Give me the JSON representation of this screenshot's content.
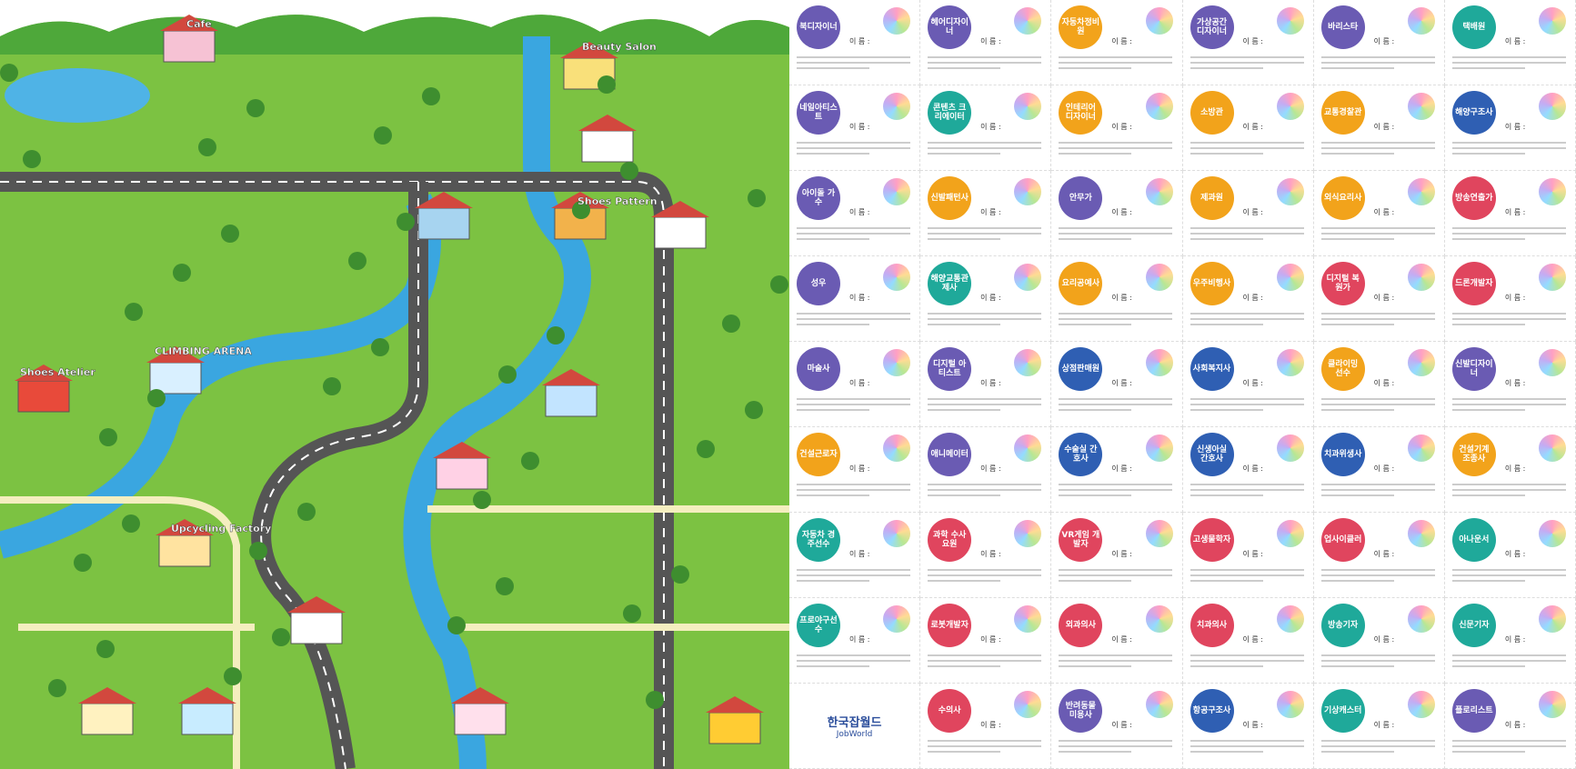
{
  "map": {
    "labels": [
      "Cafe",
      "Beauty Salon",
      "Shoes Pattern",
      "CLIMBING ARENA",
      "Shoes Atelier",
      "Upcycling Factory"
    ]
  },
  "cards": {
    "name_label": "이 름 :",
    "items": [
      {
        "title": "북디자이너",
        "color": "#6a5bb3"
      },
      {
        "title": "헤어디자이너",
        "color": "#6a5bb3"
      },
      {
        "title": "자동차정비원",
        "color": "#f2a31b"
      },
      {
        "title": "가상공간 디자이너",
        "color": "#6a5bb3"
      },
      {
        "title": "바리스타",
        "color": "#6a5bb3"
      },
      {
        "title": "택배원",
        "color": "#1fa99a"
      },
      {
        "title": "네일아티스트",
        "color": "#6a5bb3"
      },
      {
        "title": "콘텐츠 크리에이터",
        "color": "#1fa99a"
      },
      {
        "title": "인테리어 디자이너",
        "color": "#f2a31b"
      },
      {
        "title": "소방관",
        "color": "#f2a31b"
      },
      {
        "title": "교통경찰관",
        "color": "#f2a31b"
      },
      {
        "title": "해양구조사",
        "color": "#2f5fb3"
      },
      {
        "title": "아이돌 가수",
        "color": "#6a5bb3"
      },
      {
        "title": "신발패턴사",
        "color": "#f2a31b"
      },
      {
        "title": "안무가",
        "color": "#6a5bb3"
      },
      {
        "title": "제과원",
        "color": "#f2a31b"
      },
      {
        "title": "외식요리사",
        "color": "#f2a31b"
      },
      {
        "title": "방송연출가",
        "color": "#e0455e"
      },
      {
        "title": "성우",
        "color": "#6a5bb3"
      },
      {
        "title": "해양교통관제사",
        "color": "#1fa99a"
      },
      {
        "title": "요리공예사",
        "color": "#f2a31b"
      },
      {
        "title": "우주비행사",
        "color": "#f2a31b"
      },
      {
        "title": "디지털 복원가",
        "color": "#e0455e"
      },
      {
        "title": "드론개발자",
        "color": "#e0455e"
      },
      {
        "title": "마술사",
        "color": "#6a5bb3"
      },
      {
        "title": "디지털 아티스트",
        "color": "#6a5bb3"
      },
      {
        "title": "상점판매원",
        "color": "#2f5fb3"
      },
      {
        "title": "사회복지사",
        "color": "#2f5fb3"
      },
      {
        "title": "클라이밍 선수",
        "color": "#f2a31b"
      },
      {
        "title": "신발디자이너",
        "color": "#6a5bb3"
      },
      {
        "title": "건설근로자",
        "color": "#f2a31b"
      },
      {
        "title": "애니메이터",
        "color": "#6a5bb3"
      },
      {
        "title": "수술실 간호사",
        "color": "#2f5fb3"
      },
      {
        "title": "신생아실 간호사",
        "color": "#2f5fb3"
      },
      {
        "title": "치과위생사",
        "color": "#2f5fb3"
      },
      {
        "title": "건설기계 조종사",
        "color": "#f2a31b"
      },
      {
        "title": "자동차 경주선수",
        "color": "#1fa99a"
      },
      {
        "title": "과학 수사요원",
        "color": "#e0455e"
      },
      {
        "title": "VR게임 개발자",
        "color": "#e0455e"
      },
      {
        "title": "고생물학자",
        "color": "#e0455e"
      },
      {
        "title": "업사이클러",
        "color": "#e0455e"
      },
      {
        "title": "아나운서",
        "color": "#1fa99a"
      },
      {
        "title": "프로야구선수",
        "color": "#1fa99a"
      },
      {
        "title": "로봇개발자",
        "color": "#e0455e"
      },
      {
        "title": "외과의사",
        "color": "#e0455e"
      },
      {
        "title": "치과의사",
        "color": "#e0455e"
      },
      {
        "title": "방송기자",
        "color": "#1fa99a"
      },
      {
        "title": "신문기자",
        "color": "#1fa99a"
      },
      {
        "title": "수의사",
        "color": "#e0455e"
      },
      {
        "title": "반려동물 미용사",
        "color": "#6a5bb3"
      },
      {
        "title": "항공구조사",
        "color": "#2f5fb3"
      },
      {
        "title": "기상캐스터",
        "color": "#1fa99a"
      },
      {
        "title": "플로리스트",
        "color": "#6a5bb3"
      }
    ]
  },
  "logo": {
    "korean": "한국잡월드",
    "english": "JobWorld"
  }
}
